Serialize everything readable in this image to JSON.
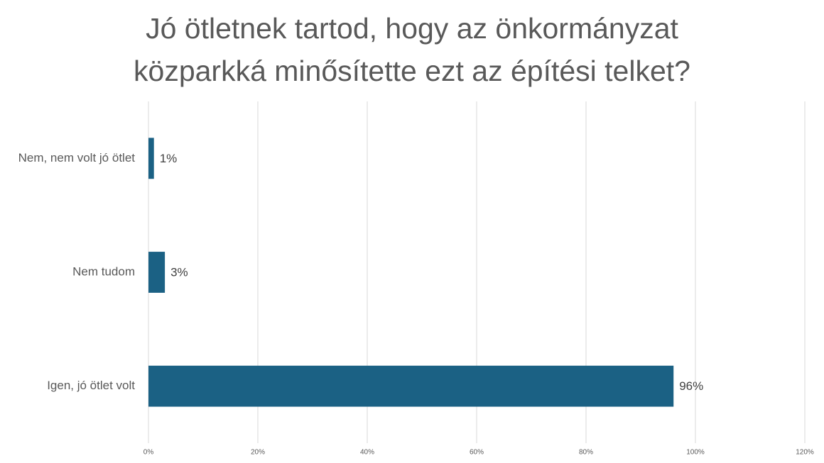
{
  "chart_data": {
    "type": "hbar",
    "title": "Jó ötletnek tartod, hogy az önkormányzat közparkká minősítette ezt az építési telket?",
    "categories": [
      "Nem, nem volt jó ötlet",
      "Nem tudom",
      "Igen, jó ötlet volt"
    ],
    "values": [
      1,
      3,
      96
    ],
    "value_labels": [
      "1%",
      "3%",
      "96%"
    ],
    "color": "#1b6184",
    "xlim": [
      0,
      120
    ],
    "xticks": [
      {
        "value": 0,
        "label": "0%"
      },
      {
        "value": 20,
        "label": "20%"
      },
      {
        "value": 40,
        "label": "40%"
      },
      {
        "value": 60,
        "label": "60%"
      },
      {
        "value": 80,
        "label": "80%"
      },
      {
        "value": 100,
        "label": "100%"
      },
      {
        "value": 120,
        "label": "120%"
      }
    ],
    "grid": true
  }
}
